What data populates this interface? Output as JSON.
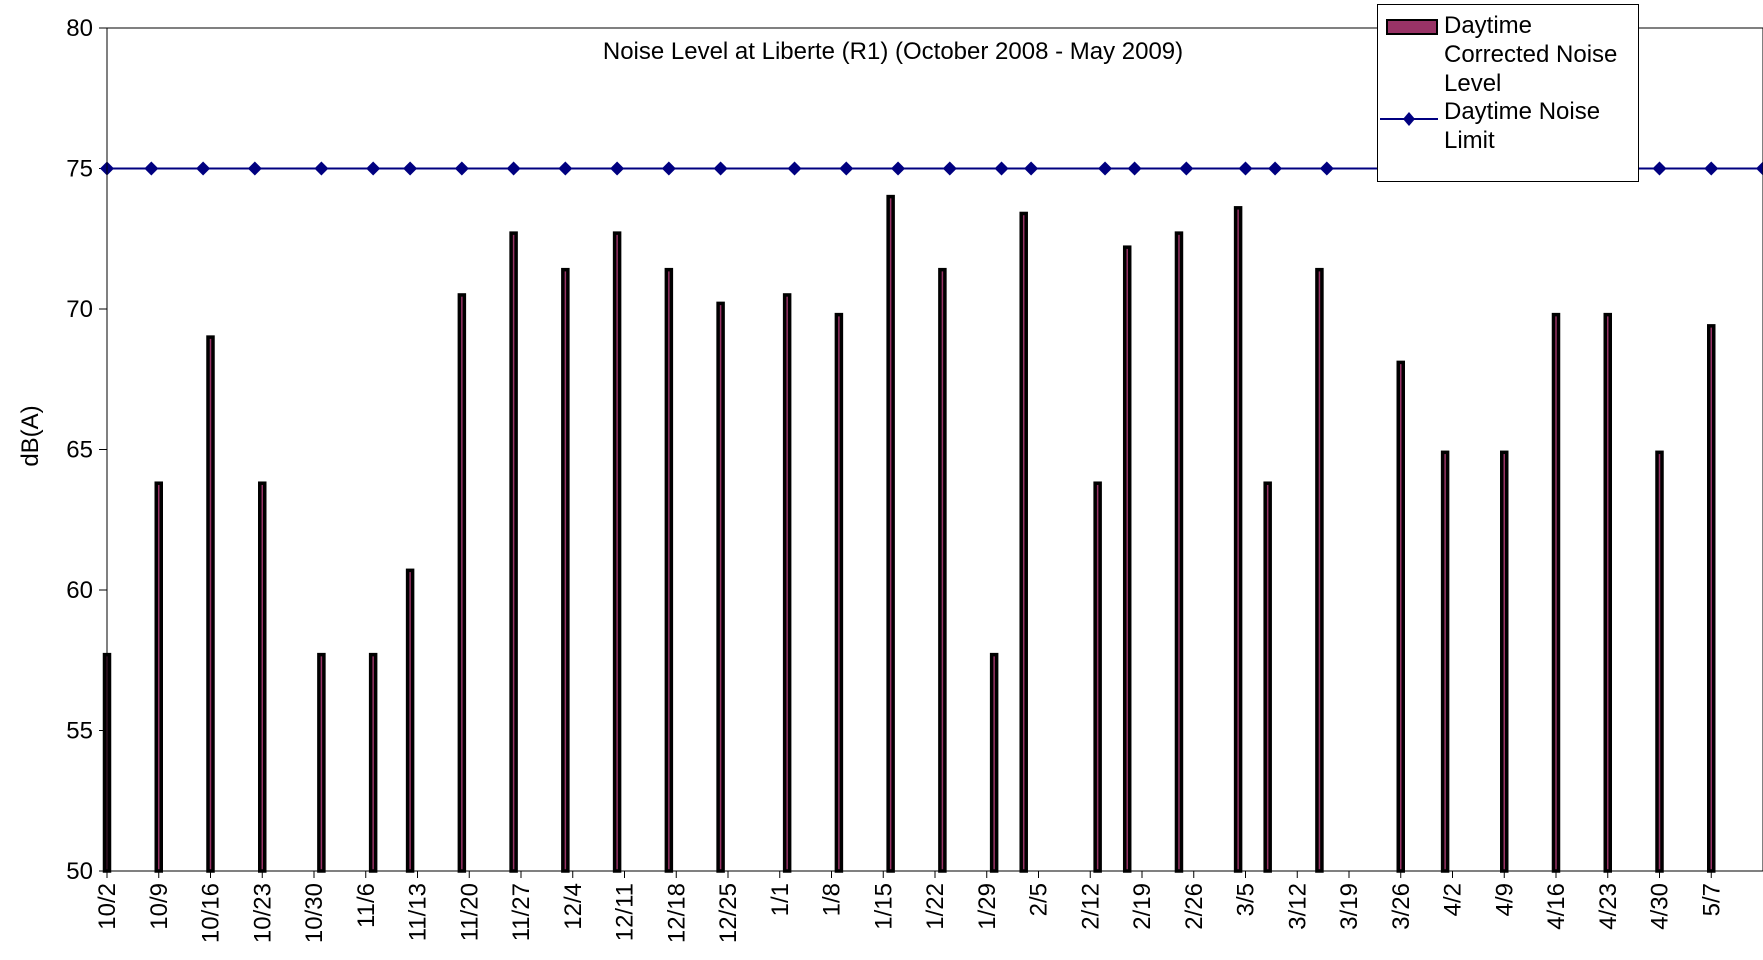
{
  "chart_data": {
    "type": "bar",
    "title": "Noise Level at Liberte (R1) (October 2008 - May 2009)",
    "xlabel": "",
    "ylabel": "dB(A)",
    "ylim": [
      50,
      80
    ],
    "yticks": [
      50,
      55,
      60,
      65,
      70,
      75,
      80
    ],
    "grid": false,
    "legend_position": "top-right",
    "x_tick_labels": [
      "10/2",
      "10/9",
      "10/16",
      "10/23",
      "10/30",
      "11/6",
      "11/13",
      "11/20",
      "11/27",
      "12/4",
      "12/11",
      "12/18",
      "12/25",
      "1/1",
      "1/8",
      "1/15",
      "1/22",
      "1/29",
      "2/5",
      "2/12",
      "2/19",
      "2/26",
      "3/5",
      "3/12",
      "3/19",
      "3/26",
      "4/2",
      "4/9",
      "4/16",
      "4/23",
      "4/30",
      "5/7"
    ],
    "x_start": "10/2",
    "x_end": "5/14",
    "series": [
      {
        "name": "Daytime Corrected Noise Level",
        "type": "bar",
        "color": "#993366",
        "dates": [
          "10/2",
          "10/9",
          "10/16",
          "10/23",
          "10/31",
          "11/7",
          "11/12",
          "11/19",
          "11/26",
          "12/3",
          "12/10",
          "12/17",
          "12/24",
          "1/2",
          "1/9",
          "1/16",
          "1/23",
          "1/30",
          "2/3",
          "2/13",
          "2/17",
          "2/24",
          "3/4",
          "3/8",
          "3/15",
          "3/26",
          "4/1",
          "4/9",
          "4/16",
          "4/23",
          "4/30",
          "5/7"
        ],
        "values": [
          57.7,
          63.8,
          69.0,
          63.8,
          57.7,
          57.7,
          60.7,
          70.5,
          72.7,
          71.4,
          72.7,
          71.4,
          70.2,
          70.5,
          69.8,
          74.0,
          71.4,
          57.7,
          73.4,
          63.8,
          72.2,
          72.7,
          73.6,
          63.8,
          71.4,
          68.1,
          64.9,
          64.9,
          69.8,
          69.8,
          64.9,
          69.4
        ]
      },
      {
        "name": "Daytime Noise Limit",
        "type": "line",
        "color": "#000080",
        "marker": "diamond",
        "dates": [
          "10/2",
          "10/8",
          "10/15",
          "10/22",
          "10/31",
          "11/7",
          "11/12",
          "11/19",
          "11/26",
          "12/3",
          "12/10",
          "12/17",
          "12/24",
          "1/3",
          "1/10",
          "1/17",
          "1/24",
          "1/31",
          "2/4",
          "2/14",
          "2/18",
          "2/25",
          "3/5",
          "3/9",
          "3/16",
          "3/27",
          "4/2",
          "4/9",
          "4/16",
          "4/23",
          "4/30",
          "5/7",
          "5/14"
        ],
        "values": [
          75,
          75,
          75,
          75,
          75,
          75,
          75,
          75,
          75,
          75,
          75,
          75,
          75,
          75,
          75,
          75,
          75,
          75,
          75,
          75,
          75,
          75,
          75,
          75,
          75,
          75,
          75,
          75,
          75,
          75,
          75,
          75,
          75
        ]
      }
    ]
  },
  "legend": {
    "bar_label": "Daytime Corrected Noise Level",
    "line_label": "Daytime Noise Limit"
  }
}
